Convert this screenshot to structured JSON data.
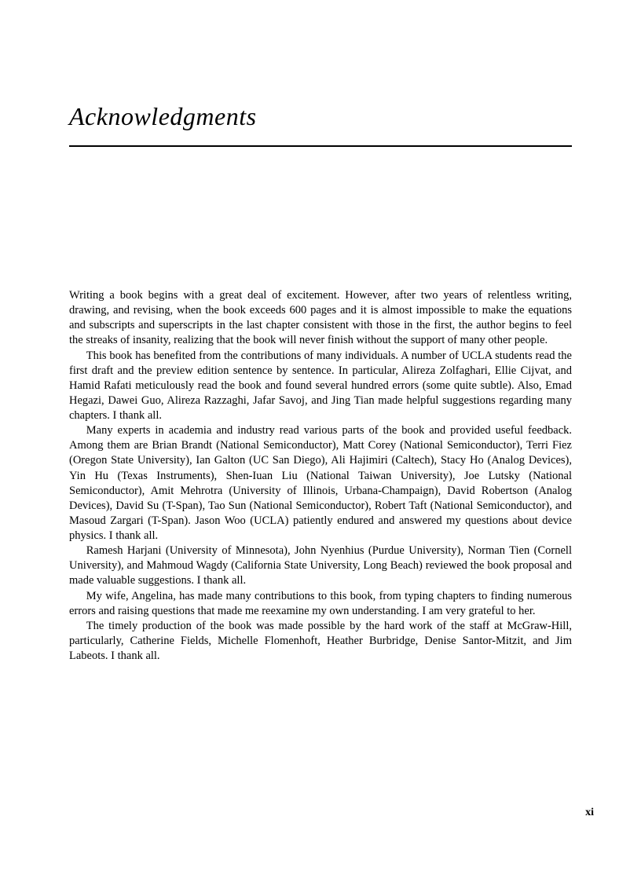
{
  "title": "Acknowledgments",
  "paragraphs": [
    "Writing a book begins with a great deal of excitement. However, after two years of relentless writing, drawing, and revising, when the book exceeds 600 pages and it is almost impossible to make the equations and subscripts and superscripts in the last chapter consistent with those in the first, the author begins to feel the streaks of insanity, realizing that the book will never finish without the support of many other people.",
    "This book has benefited from the contributions of many individuals. A number of UCLA students read the first draft and the preview edition sentence by sentence. In particular, Alireza Zolfaghari, Ellie Cijvat, and Hamid Rafati meticulously read the book and found several hundred errors (some quite subtle). Also, Emad Hegazi, Dawei Guo, Alireza Razzaghi, Jafar Savoj, and Jing Tian made helpful suggestions regarding many chapters. I thank all.",
    "Many experts in academia and industry read various parts of the book and provided useful feedback. Among them are Brian Brandt (National Semiconductor), Matt Corey (National Semiconductor), Terri Fiez (Oregon State University), Ian Galton (UC San Diego), Ali Hajimiri (Caltech), Stacy Ho (Analog Devices), Yin Hu (Texas Instruments), Shen-Iuan Liu (National Taiwan University), Joe Lutsky (National Semiconductor), Amit Mehrotra (University of Illinois, Urbana-Champaign), David Robertson (Analog Devices), David Su (T-Span), Tao Sun (National Semiconductor), Robert Taft (National Semiconductor), and Masoud Zargari (T-Span). Jason Woo (UCLA) patiently endured and answered my questions about device physics. I thank all.",
    "Ramesh Harjani (University of Minnesota), John Nyenhius (Purdue University), Norman Tien (Cornell University), and Mahmoud Wagdy (California State University, Long Beach) reviewed the book proposal and made valuable suggestions. I thank all.",
    "My wife, Angelina, has made many contributions to this book, from typing chapters to finding numerous errors and raising questions that made me reexamine my own understanding. I am very grateful to her.",
    "The timely production of the book was made possible by the hard work of the staff at McGraw-Hill, particularly, Catherine Fields, Michelle Flomenhoft, Heather Burbridge, Denise Santor-Mitzit, and Jim Labeots. I thank all."
  ],
  "pageNumber": "xi"
}
